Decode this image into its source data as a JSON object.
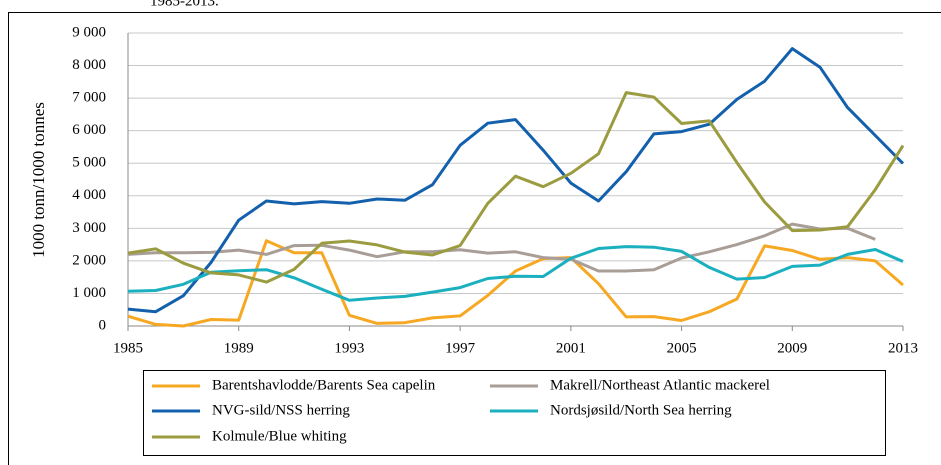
{
  "chart_data": {
    "type": "line",
    "title": "1985-2013.",
    "y_label": "1000 tonn/1000 tonnes",
    "x": [
      1985,
      1986,
      1987,
      1988,
      1989,
      1990,
      1991,
      1992,
      1993,
      1994,
      1995,
      1996,
      1997,
      1998,
      1999,
      2000,
      2001,
      2002,
      2003,
      2004,
      2005,
      2006,
      2007,
      2008,
      2009,
      2010,
      2011,
      2012,
      2013
    ],
    "xlim": [
      1985,
      2013
    ],
    "xticks": [
      1985,
      1989,
      1993,
      1997,
      2001,
      2005,
      2009,
      2013
    ],
    "ylim": [
      0,
      9000
    ],
    "yticks": [
      {
        "value": 0,
        "label": "0"
      },
      {
        "value": 1000,
        "label": "1 000"
      },
      {
        "value": 2000,
        "label": "2 000"
      },
      {
        "value": 3000,
        "label": "3 000"
      },
      {
        "value": 4000,
        "label": "4 000"
      },
      {
        "value": 5000,
        "label": "5 000"
      },
      {
        "value": 6000,
        "label": "6 000"
      },
      {
        "value": 7000,
        "label": "7 000"
      },
      {
        "value": 8000,
        "label": "8 000"
      },
      {
        "value": 9000,
        "label": "9 000"
      }
    ],
    "grid": true,
    "series": [
      {
        "name": "Barentshavlodde/Barents Sea capelin",
        "color": "#f7a823",
        "values": [
          300,
          50,
          0,
          200,
          180,
          2620,
          2250,
          2250,
          330,
          80,
          100,
          250,
          310,
          940,
          1690,
          2070,
          2100,
          1300,
          280,
          290,
          170,
          440,
          830,
          2460,
          2320,
          2050,
          2100,
          2000,
          1260
        ]
      },
      {
        "name": "Makrell/Northeast Atlantic mackerel",
        "color": "#a89e97",
        "values": [
          2200,
          2250,
          2250,
          2260,
          2330,
          2200,
          2470,
          2480,
          2330,
          2130,
          2280,
          2280,
          2340,
          2240,
          2280,
          2100,
          2050,
          1690,
          1690,
          1730,
          2090,
          2280,
          2500,
          2770,
          3130,
          2980,
          3000,
          2660,
          null
        ]
      },
      {
        "name": "NVG-sild/NSS herring",
        "color": "#1360ac",
        "values": [
          520,
          440,
          930,
          1950,
          3250,
          3840,
          3750,
          3820,
          3770,
          3900,
          3860,
          4340,
          5550,
          6230,
          6340,
          5400,
          4390,
          3840,
          4740,
          5900,
          5970,
          6200,
          6960,
          7520,
          8520,
          7950,
          6710,
          5850,
          4990
        ]
      },
      {
        "name": "Nordsjøsild/North Sea herring",
        "color": "#1bb0bf",
        "values": [
          1070,
          1090,
          1280,
          1650,
          1700,
          1730,
          1480,
          1130,
          790,
          860,
          910,
          1040,
          1180,
          1460,
          1530,
          1520,
          2080,
          2380,
          2440,
          2420,
          2290,
          1800,
          1440,
          1490,
          1830,
          1870,
          2200,
          2350,
          1980
        ]
      },
      {
        "name": "Kolmule/Blue whiting",
        "color": "#9b9b3f",
        "values": [
          2240,
          2370,
          1930,
          1630,
          1570,
          1350,
          1740,
          2540,
          2610,
          2490,
          2270,
          2180,
          2470,
          3770,
          4600,
          4280,
          4690,
          5290,
          7170,
          7030,
          6220,
          6300,
          5020,
          3810,
          2930,
          2950,
          3050,
          4190,
          5540
        ]
      }
    ]
  }
}
